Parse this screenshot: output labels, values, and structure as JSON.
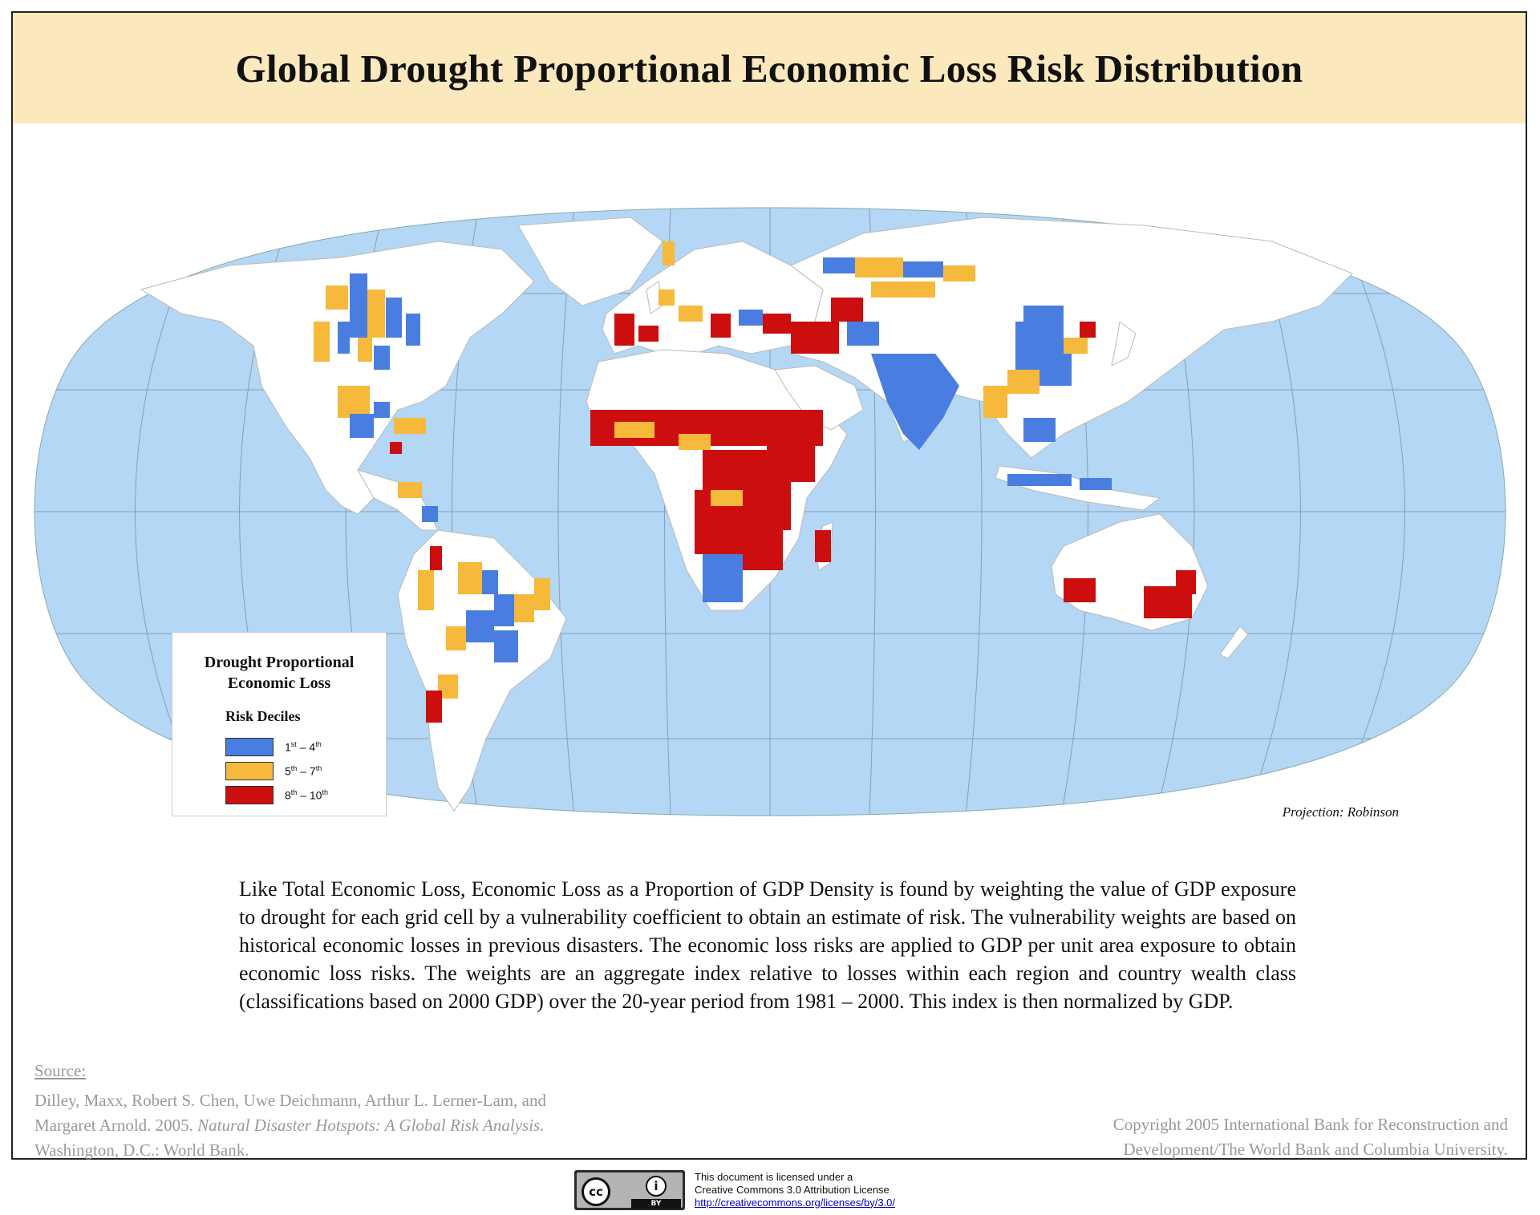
{
  "title": "Global Drought Proportional Economic Loss Risk Distribution",
  "legend": {
    "title": "Drought Proportional\nEconomic Loss",
    "subtitle": "Risk Deciles",
    "items": [
      {
        "range_from": "1",
        "from_suffix": "st",
        "range_to": "4",
        "to_suffix": "th",
        "color": "#4a7de0"
      },
      {
        "range_from": "5",
        "from_suffix": "th",
        "range_to": "7",
        "to_suffix": "th",
        "color": "#f6b93b"
      },
      {
        "range_from": "8",
        "from_suffix": "th",
        "range_to": "10",
        "to_suffix": "th",
        "color": "#cc0e0e"
      }
    ]
  },
  "map": {
    "projection_label": "Projection: Robinson",
    "colors": {
      "ocean": "#b3d7f5",
      "land": "#ffffff",
      "low": "#4a7de0",
      "medium": "#f6b93b",
      "high": "#cc0e0e",
      "header": "#fce8bd"
    }
  },
  "description": "Like Total Economic Loss, Economic Loss as a Proportion of GDP Density is found by weighting the value of GDP exposure to drought for each grid cell by a vulnerability coefficient to obtain an estimate of risk. The vulnerability weights are based on historical economic losses in previous disasters. The economic loss risks are applied to GDP per unit area exposure to obtain economic loss risks. The weights are an aggregate index relative to losses within each region and country wealth class (classifications based on 2000 GDP) over the 20-year period from 1981 – 2000. This index is then normalized by GDP.",
  "source": {
    "heading": "Source:",
    "authors": "Dilley, Maxx, Robert S. Chen, Uwe Deichmann, Arthur L. Lerner-Lam, and Margaret Arnold. 2005.",
    "work_title": "Natural Disaster Hotspots: A Global Risk Analysis.",
    "publisher": "Washington, D.C.: World Bank."
  },
  "copyright": "Copyright 2005 International Bank for Reconstruction and Development/The World Bank and Columbia University.",
  "license": {
    "badge_cc": "cc",
    "badge_by": "BY",
    "badge_person": "i",
    "line1": "This document is licensed under a",
    "line2": "Creative Commons 3.0 Attribution License",
    "url": "http://creativecommons.org/licenses/by/3.0/"
  }
}
